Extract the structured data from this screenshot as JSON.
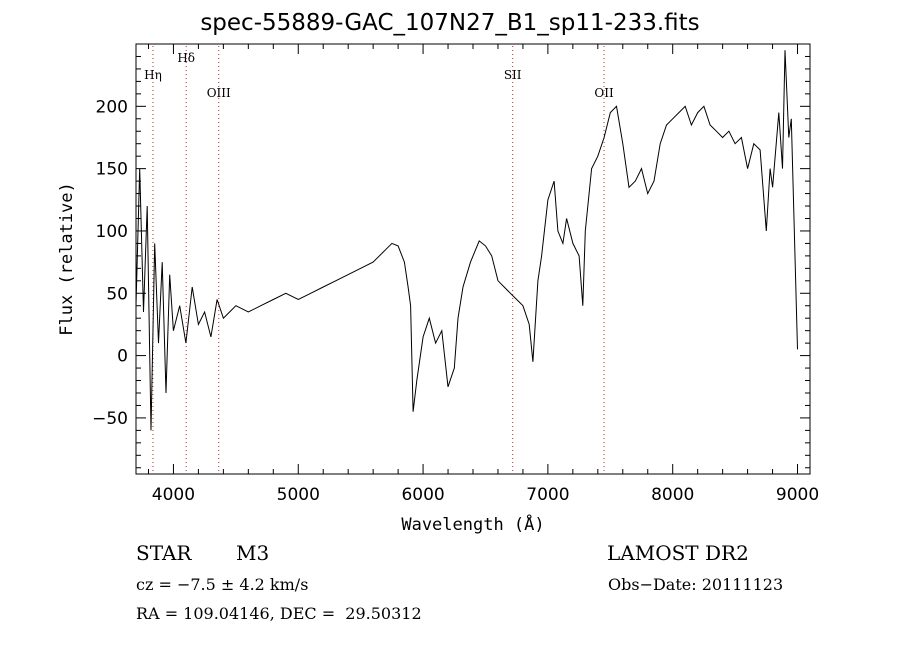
{
  "chart_data": {
    "type": "line",
    "title": "spec-55889-GAC_107N27_B1_sp11-233.fits",
    "xlabel": "Wavelength (Å)",
    "ylabel": "Flux (relative)",
    "xlim": [
      3700,
      9100
    ],
    "ylim": [
      -95,
      250
    ],
    "xticks": [
      4000,
      5000,
      6000,
      7000,
      8000,
      9000
    ],
    "xtick_labels": [
      "4000",
      "5000",
      "6000",
      "7000",
      "8000",
      "9000"
    ],
    "yticks": [
      -50,
      0,
      50,
      100,
      150,
      200
    ],
    "ytick_labels": [
      "−50",
      "0",
      "50",
      "100",
      "150",
      "200"
    ],
    "grid": false,
    "line_color": "#000000",
    "marker_color": "#c62828",
    "lines": [
      {
        "label": "Hη",
        "wavelength": 3836
      },
      {
        "label": "Hδ",
        "wavelength": 4102
      },
      {
        "label": "OIII",
        "wavelength": 4363
      },
      {
        "label": "SII",
        "wavelength": 6718
      },
      {
        "label": "OII",
        "wavelength": 7450
      }
    ],
    "series": [
      {
        "x": [
          3700,
          3730,
          3760,
          3790,
          3820,
          3850,
          3880,
          3910,
          3940,
          3970,
          4000,
          4050,
          4100,
          4150,
          4200,
          4250,
          4300,
          4350,
          4400,
          4450,
          4500,
          4600,
          4700,
          4800,
          4900,
          5000,
          5100,
          5200,
          5300,
          5400,
          5500,
          5600,
          5700,
          5750,
          5800,
          5850,
          5880,
          5900,
          5920,
          5950,
          6000,
          6050,
          6100,
          6150,
          6200,
          6250,
          6280,
          6320,
          6380,
          6450,
          6500,
          6550,
          6600,
          6650,
          6700,
          6750,
          6800,
          6850,
          6880,
          6920,
          6950,
          7000,
          7050,
          7080,
          7120,
          7150,
          7200,
          7250,
          7280,
          7300,
          7350,
          7400,
          7450,
          7500,
          7550,
          7600,
          7650,
          7700,
          7750,
          7800,
          7850,
          7900,
          7950,
          8000,
          8050,
          8100,
          8150,
          8200,
          8250,
          8300,
          8350,
          8400,
          8450,
          8500,
          8550,
          8600,
          8650,
          8700,
          8750,
          8780,
          8800,
          8850,
          8880,
          8900,
          8930,
          8950,
          9000
        ],
        "y": [
          40,
          150,
          35,
          120,
          -60,
          90,
          10,
          75,
          -30,
          65,
          20,
          40,
          10,
          55,
          25,
          35,
          15,
          45,
          30,
          35,
          40,
          35,
          40,
          45,
          50,
          45,
          50,
          55,
          60,
          65,
          70,
          75,
          85,
          90,
          88,
          75,
          55,
          40,
          -45,
          -20,
          15,
          30,
          10,
          20,
          -25,
          -10,
          30,
          55,
          75,
          92,
          88,
          80,
          60,
          55,
          50,
          45,
          40,
          25,
          -5,
          60,
          80,
          125,
          140,
          100,
          90,
          110,
          90,
          80,
          40,
          100,
          150,
          160,
          175,
          195,
          200,
          170,
          135,
          140,
          150,
          130,
          140,
          170,
          185,
          190,
          195,
          200,
          185,
          195,
          200,
          185,
          180,
          175,
          180,
          170,
          175,
          150,
          170,
          165,
          100,
          150,
          135,
          195,
          150,
          245,
          175,
          190,
          5
        ]
      }
    ]
  },
  "info": {
    "object_class": "STAR",
    "subclass": "M3",
    "survey": "LAMOST DR2",
    "redshift": "cz = −7.5 ± 4.2 km/s",
    "obs_date": "Obs−Date: 20111123",
    "coords": "RA = 109.04146, DEC =  29.50312"
  }
}
